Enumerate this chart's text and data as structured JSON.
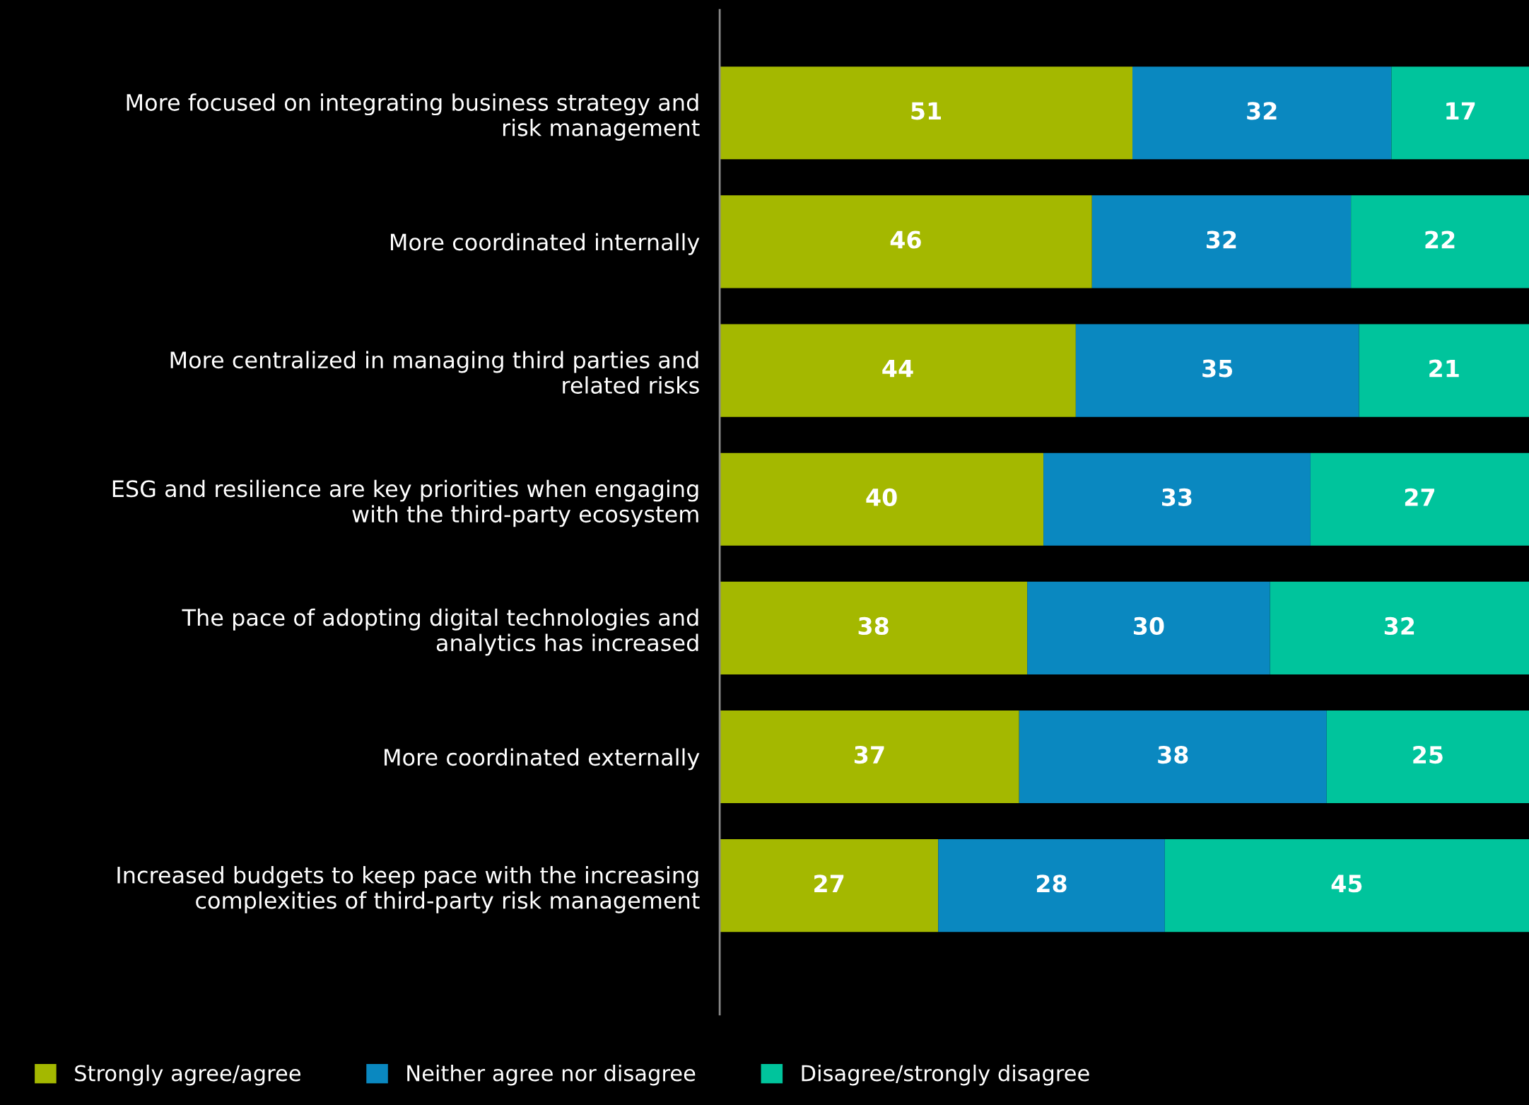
{
  "chart_data": {
    "type": "bar",
    "orientation": "horizontal",
    "stacked": true,
    "categories": [
      "More focused on integrating business strategy and\nrisk management",
      "More coordinated internally",
      "More centralized in managing third parties and\nrelated risks",
      "ESG and resilience are key priorities when engaging\nwith the third-party ecosystem",
      "The pace of adopting digital technologies and\nanalytics has increased",
      "More coordinated externally",
      "Increased budgets to keep pace with the increasing\ncomplexities of third-party risk management"
    ],
    "series": [
      {
        "name": "Strongly agree/agree",
        "color": "#a4b800",
        "values": [
          51,
          46,
          44,
          40,
          38,
          37,
          27
        ]
      },
      {
        "name": "Neither agree nor disagree",
        "color": "#0a88c0",
        "values": [
          32,
          32,
          35,
          33,
          30,
          38,
          28
        ]
      },
      {
        "name": "Disagree/strongly disagree",
        "color": "#00c49c",
        "values": [
          17,
          22,
          21,
          27,
          32,
          25,
          45
        ]
      }
    ],
    "data_labels": true,
    "legend": "bottom",
    "tick_labels": "y",
    "grid": false
  }
}
